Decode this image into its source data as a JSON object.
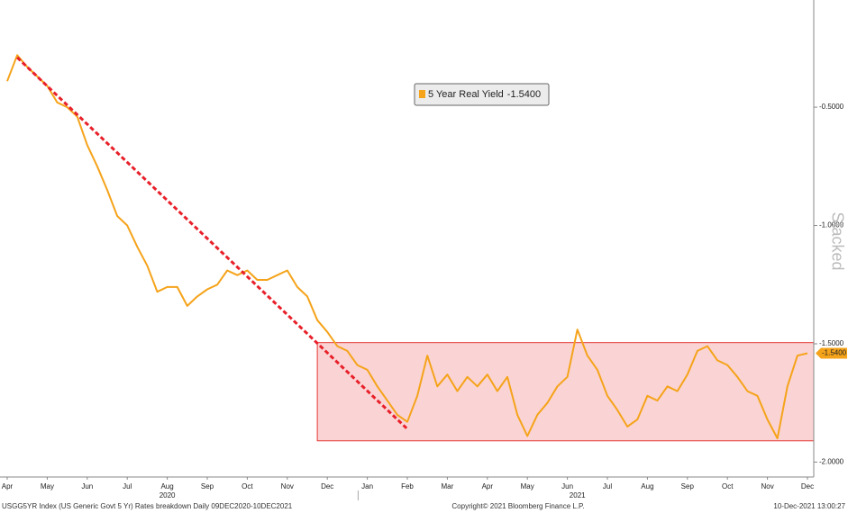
{
  "chart_data": {
    "type": "line",
    "categories": [
      "Apr",
      null,
      null,
      null,
      "May",
      null,
      null,
      null,
      "Jun",
      null,
      null,
      null,
      "Jul",
      null,
      null,
      null,
      "Aug",
      null,
      null,
      null,
      "Sep",
      null,
      null,
      null,
      "Oct",
      null,
      null,
      null,
      "Nov",
      null,
      null,
      null,
      "Dec",
      null,
      null,
      null,
      "Jan",
      null,
      null,
      null,
      "Feb",
      null,
      null,
      null,
      "Mar",
      null,
      null,
      null,
      "Apr",
      null,
      null,
      null,
      "May",
      null,
      null,
      null,
      "Jun",
      null,
      null,
      null,
      "Jul",
      null,
      null,
      null,
      "Aug",
      null,
      null,
      null,
      "Sep",
      null,
      null,
      null,
      "Oct",
      null,
      null,
      null,
      "Nov",
      null,
      null,
      null,
      "Dec"
    ],
    "series": [
      {
        "name": "5 Year Real Yield",
        "color": "#f5a31a",
        "values": [
          -0.39,
          -0.28,
          -0.33,
          -0.37,
          -0.41,
          -0.48,
          -0.5,
          -0.54,
          -0.66,
          -0.75,
          -0.85,
          -0.96,
          -1.0,
          -1.09,
          -1.17,
          -1.28,
          -1.26,
          -1.26,
          -1.34,
          -1.3,
          -1.27,
          -1.25,
          -1.19,
          -1.21,
          -1.19,
          -1.23,
          -1.23,
          -1.21,
          -1.19,
          -1.26,
          -1.3,
          -1.4,
          -1.45,
          -1.51,
          -1.53,
          -1.59,
          -1.61,
          -1.68,
          -1.74,
          -1.8,
          -1.83,
          -1.72,
          -1.55,
          -1.68,
          -1.63,
          -1.7,
          -1.64,
          -1.68,
          -1.63,
          -1.7,
          -1.64,
          -1.8,
          -1.89,
          -1.8,
          -1.75,
          -1.68,
          -1.64,
          -1.44,
          -1.55,
          -1.61,
          -1.72,
          -1.78,
          -1.85,
          -1.82,
          -1.72,
          -1.74,
          -1.68,
          -1.7,
          -1.63,
          -1.53,
          -1.51,
          -1.57,
          -1.59,
          -1.64,
          -1.7,
          -1.72,
          -1.82,
          -1.9,
          -1.68,
          -1.55,
          -1.54
        ]
      }
    ],
    "last_value": {
      "value": -1.54,
      "label": "-1.5400"
    },
    "year_labels": [
      {
        "index": 16,
        "label": "2020"
      },
      {
        "index": 57,
        "label": "2021"
      }
    ],
    "ylim": [
      -2.063,
      -0.047
    ],
    "yticks": [
      {
        "value": -0.5,
        "label": "-0.5000"
      },
      {
        "value": -1.0,
        "label": "-1.0000"
      },
      {
        "value": -1.5,
        "label": "-1.5000"
      },
      {
        "value": -2.0,
        "label": "-2.0000"
      }
    ],
    "band": {
      "from_index": 31,
      "ylim": [
        -1.91,
        -1.495
      ]
    },
    "trendline": {
      "from": [
        1,
        -0.29
      ],
      "to": [
        40,
        -1.86
      ]
    },
    "watermark": "Stacked",
    "footer_left": "USGG5YR Index (US Generic Govt 5 Yr) Rates breakdown  Daily 09DEC2020-10DEC2021",
    "footer_center": "Copyright© 2021 Bloomberg Finance L.P.",
    "footer_right": "10-Dec-2021 13:00:27"
  }
}
